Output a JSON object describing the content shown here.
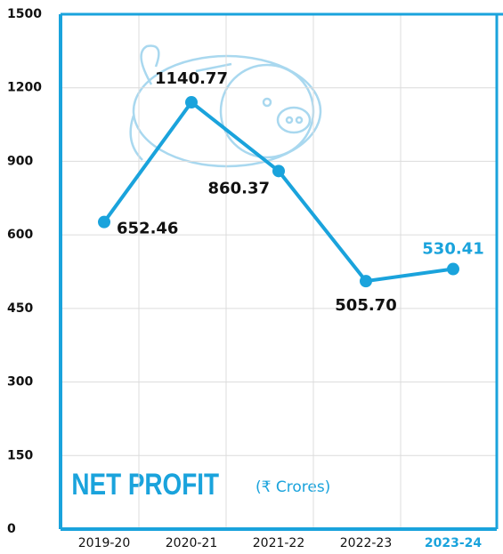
{
  "chart_data": {
    "type": "line",
    "title": "NET PROFIT",
    "subtitle": "(₹ Crores)",
    "categories": [
      "2019-20",
      "2020-21",
      "2021-22",
      "2022-23",
      "2023-24"
    ],
    "category_colors": [
      "#111111",
      "#111111",
      "#111111",
      "#111111",
      "#1aa3dc"
    ],
    "series": [
      {
        "name": "Net Profit",
        "color": "#1aa3dc",
        "values": [
          652.46,
          1140.77,
          860.37,
          505.7,
          530.41
        ],
        "value_labels": [
          "652.46",
          "1140.77",
          "860.37",
          "505.70",
          "530.41"
        ],
        "value_label_colors": [
          "#111111",
          "#111111",
          "#111111",
          "#111111",
          "#1aa3dc"
        ]
      }
    ],
    "ylim": [
      0,
      1500
    ],
    "yticks": [
      0,
      150,
      300,
      450,
      600,
      900,
      1200,
      1500
    ],
    "grid": true
  }
}
